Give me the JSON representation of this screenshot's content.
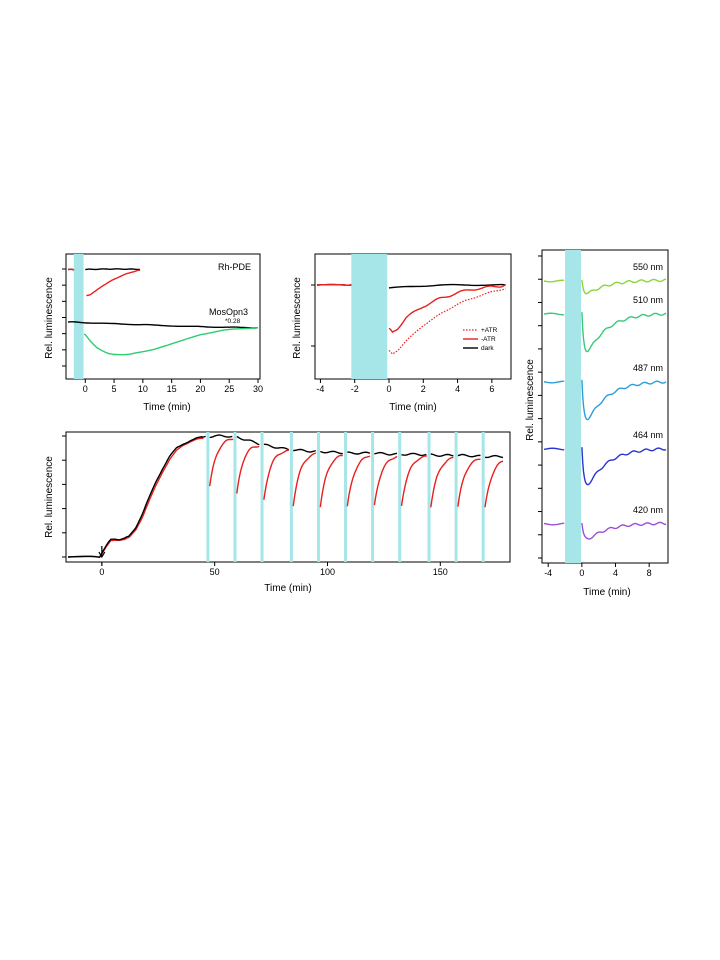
{
  "figure": {
    "panels": [
      "panel-a",
      "panel-b",
      "panel-c",
      "panel-d"
    ]
  },
  "chart_data": [
    {
      "id": "panel-a",
      "type": "line",
      "xlabel": "Time (min)",
      "ylabel": "Rel. luminescence",
      "xlim": [
        -3,
        30
      ],
      "x_ticks": [
        "0",
        "5",
        "10",
        "15",
        "20",
        "25",
        "30"
      ],
      "y_ticks": 7,
      "stimulus_band": [
        -2,
        -0.3
      ],
      "stimulus_color": "#a6e6e8",
      "annotations": [
        "Rh-PDE",
        "MosOpn3",
        "*0.28"
      ],
      "series": [
        {
          "key": "rh_dark",
          "color": "#000000",
          "x": [
            -3,
            -2.2,
            -2,
            -0.2,
            0,
            1,
            2,
            3,
            4,
            5,
            6,
            7,
            8,
            9,
            9.5
          ],
          "y": [
            0.91,
            0.91,
            0.91,
            0.91,
            0.91,
            0.915,
            0.918,
            0.92,
            0.922,
            0.923,
            0.922,
            0.92,
            0.918,
            0.915,
            0.915
          ]
        },
        {
          "key": "rh_red",
          "color": "#e8201e",
          "x": [
            -3,
            -2.2,
            -2,
            0.2,
            0.5,
            1,
            2,
            3,
            4,
            5,
            6,
            7,
            8,
            9,
            9.5
          ],
          "y": [
            0.91,
            0.91,
            0.91,
            0.24,
            0.245,
            0.28,
            0.38,
            0.49,
            0.58,
            0.66,
            0.73,
            0.79,
            0.84,
            0.88,
            0.89
          ]
        },
        {
          "key": "mos_dark",
          "color": "#000000",
          "x": [
            -3,
            -2,
            0,
            2,
            5,
            8,
            10,
            12,
            15,
            18,
            20,
            22,
            25,
            27,
            30
          ],
          "y": [
            0.62,
            0.62,
            0.61,
            0.6,
            0.59,
            0.58,
            0.575,
            0.565,
            0.555,
            0.545,
            0.54,
            0.535,
            0.53,
            0.525,
            0.52
          ]
        },
        {
          "key": "mos_green",
          "color": "#2ecc71",
          "x": [
            -0.2,
            0,
            1,
            2,
            3,
            4,
            5,
            6,
            7,
            8,
            9,
            10,
            12,
            14,
            16,
            18,
            20,
            22,
            24,
            26,
            28,
            30
          ],
          "y": [
            0.41,
            0.4,
            0.28,
            0.18,
            0.12,
            0.08,
            0.06,
            0.055,
            0.06,
            0.07,
            0.09,
            0.11,
            0.15,
            0.21,
            0.28,
            0.34,
            0.4,
            0.44,
            0.48,
            0.5,
            0.51,
            0.52
          ]
        }
      ]
    },
    {
      "id": "panel-b",
      "type": "line",
      "xlabel": "Time (min)",
      "ylabel": "Rel. luminescence",
      "xlim": [
        -4.2,
        7
      ],
      "x_ticks": [
        "-4",
        "-2",
        "0",
        "2",
        "4",
        "6"
      ],
      "y_ticks": 2,
      "stimulus_band": [
        -2.2,
        -0.1
      ],
      "stimulus_color": "#a6e6e8",
      "legend": [
        {
          "label": "+ATR",
          "color": "#e8201e",
          "dash": "dotted"
        },
        {
          "label": "-ATR",
          "color": "#e8201e",
          "dash": "solid"
        },
        {
          "label": "dark",
          "color": "#000000",
          "dash": "solid"
        }
      ],
      "series": [
        {
          "key": "dark",
          "color": "#000000",
          "x": [
            -4.2,
            -3,
            -2.2,
            0,
            1,
            2,
            3,
            4,
            5,
            6,
            6.8
          ],
          "y": [
            1.0,
            1.0,
            1.0,
            0.97,
            0.98,
            0.99,
            1.0,
            1.0,
            1.0,
            1.0,
            1.0
          ]
        },
        {
          "key": "plus_atr",
          "color": "#e8201e",
          "x": [
            -4.2,
            -3,
            -2.2,
            0,
            0.2,
            0.5,
            1,
            1.5,
            2,
            2.5,
            3,
            3.5,
            4,
            4.5,
            5,
            5.5,
            6,
            6.5,
            6.8
          ],
          "y": [
            1.0,
            1.0,
            1.0,
            0.32,
            0.28,
            0.32,
            0.42,
            0.5,
            0.58,
            0.64,
            0.7,
            0.75,
            0.8,
            0.84,
            0.87,
            0.9,
            0.93,
            0.95,
            0.96
          ]
        },
        {
          "key": "minus_atr",
          "color": "#e8201e",
          "x": [
            -4.2,
            -3,
            -2.2,
            0,
            0.2,
            0.5,
            1,
            1.5,
            2,
            2.5,
            3,
            3.5,
            4,
            4.5,
            5,
            5.5,
            6,
            6.5,
            6.8
          ],
          "y": [
            1.0,
            1.0,
            1.0,
            0.55,
            0.5,
            0.55,
            0.66,
            0.72,
            0.78,
            0.82,
            0.86,
            0.89,
            0.92,
            0.94,
            0.96,
            0.97,
            0.98,
            0.99,
            1.0
          ]
        }
      ]
    },
    {
      "id": "panel-c",
      "type": "line",
      "xlabel": "Time (min)",
      "ylabel": "Rel. luminescence",
      "xlim": [
        -15,
        180
      ],
      "x_ticks": [
        "0",
        "50",
        "100",
        "150"
      ],
      "y_ticks": 6,
      "stimulus_times": [
        47,
        59,
        71,
        84,
        96,
        108,
        120,
        132,
        145,
        157,
        169
      ],
      "stimulus_color": "#a6e6e8",
      "arrow_at": 0,
      "series": [
        {
          "key": "dark",
          "color": "#000000",
          "x": [
            -15,
            -5,
            -1,
            0,
            2,
            4,
            6,
            8,
            10,
            12,
            15,
            18,
            21,
            24,
            27,
            30,
            33,
            36,
            39,
            42,
            45,
            50,
            55,
            60,
            70,
            80,
            90,
            100,
            110,
            120,
            130,
            140,
            150,
            160,
            170,
            180
          ],
          "y": [
            0.0,
            0.0,
            0.0,
            0.04,
            0.1,
            0.15,
            0.16,
            0.155,
            0.16,
            0.18,
            0.26,
            0.38,
            0.52,
            0.66,
            0.78,
            0.88,
            0.95,
            0.99,
            1.02,
            1.04,
            1.05,
            1.06,
            1.06,
            1.05,
            0.99,
            0.95,
            0.93,
            0.92,
            0.91,
            0.91,
            0.9,
            0.9,
            0.89,
            0.89,
            0.88,
            0.88
          ]
        },
        {
          "key": "red",
          "color": "#e8201e",
          "x": [
            -15,
            -5,
            -1,
            0,
            2,
            4,
            6,
            8,
            10,
            12,
            15,
            18,
            21,
            24,
            27,
            30,
            33,
            36,
            39,
            42,
            45
          ],
          "y": [
            0.0,
            0.0,
            0.0,
            0.03,
            0.09,
            0.14,
            0.15,
            0.15,
            0.15,
            0.17,
            0.24,
            0.35,
            0.49,
            0.63,
            0.75,
            0.85,
            0.93,
            0.98,
            1.01,
            1.03,
            1.04
          ]
        }
      ],
      "recovery_depth": [
        0.62,
        0.55,
        0.5,
        0.45,
        0.44,
        0.44,
        0.45,
        0.45,
        0.44,
        0.44,
        0.43
      ]
    },
    {
      "id": "panel-d",
      "type": "line",
      "xlabel": "Time (min)",
      "ylabel": "Rel. luminescence",
      "xlim": [
        -4.5,
        10
      ],
      "x_ticks": [
        "-4",
        "0",
        "4",
        "8"
      ],
      "y_ticks": 14,
      "stimulus_band": [
        -2,
        -0.1
      ],
      "stimulus_color": "#a6e6e8",
      "series": [
        {
          "name": "550 nm",
          "color": "#8bd63a",
          "offset": 4,
          "depth": 0.14
        },
        {
          "name": "510 nm",
          "color": "#37c978",
          "offset": 3,
          "depth": 0.62
        },
        {
          "name": "487 nm",
          "color": "#2a9ed8",
          "offset": 2,
          "depth": 0.62
        },
        {
          "name": "464 nm",
          "color": "#2a35d0",
          "offset": 1,
          "depth": 0.75
        },
        {
          "name": "420 nm",
          "color": "#9b4fd8",
          "offset": 0,
          "depth": 0.28
        }
      ]
    }
  ]
}
